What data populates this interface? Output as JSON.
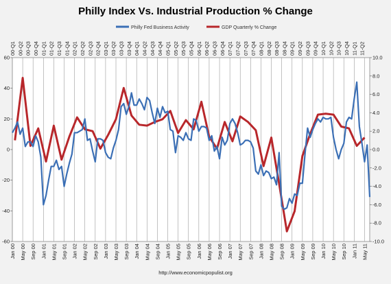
{
  "chart_data": {
    "type": "line",
    "title": "Philly Index Vs.  Industrial Production % Change",
    "footer": "http://www.economicpopulist.org",
    "legend": {
      "position": "top",
      "entries": [
        "Philly Fed Business Activity",
        "GDP Quarterly % Change"
      ]
    },
    "colors": {
      "philly": "#3b6fb5",
      "gdp": "#b8272b"
    },
    "left_axis": {
      "ylim": [
        -60,
        60
      ],
      "ticks": [
        "60",
        "40",
        "20",
        "0",
        "-20",
        "-40",
        "-60"
      ]
    },
    "right_axis": {
      "ylim": [
        -10,
        10
      ],
      "ticks": [
        "10.0",
        "8.0",
        "6.0",
        "4.0",
        "2.0",
        "0.0",
        "-2.0",
        "-4.0",
        "-6.0",
        "-8.0",
        "-10.0"
      ]
    },
    "x_month_range": [
      "Jan 00",
      "Jul 11"
    ],
    "bottom_labels": [
      "Jan 00",
      "May 00",
      "Sep 00",
      "Jan 01",
      "May 01",
      "Sep 01",
      "Jan 02",
      "May 02",
      "Sep 02",
      "Jan 03",
      "May 03",
      "Sep 03",
      "Jan 04",
      "May 04",
      "Sep 04",
      "Jan 05",
      "May 05",
      "Sep 05",
      "Jan 06",
      "May 06",
      "Sep 06",
      "Jan 07",
      "May 07",
      "Sep 07",
      "Jan 08",
      "May 08",
      "Sep 08",
      "Jan 09",
      "May 09",
      "Sep 09",
      "Jan 10",
      "May 10",
      "Sep 10",
      "Jan 11",
      "May 11"
    ],
    "top_labels": [
      "00-Q1",
      "00-Q2",
      "00-Q3",
      "00-Q4",
      "01-Q1",
      "01-Q2",
      "01-Q3",
      "01-Q4",
      "02-Q1",
      "02-Q2",
      "02-Q3",
      "02-Q4",
      "03-Q1",
      "03-Q2",
      "03-Q3",
      "03-Q4",
      "04-Q1",
      "04-Q2",
      "04-Q3",
      "04-Q4",
      "05-Q1",
      "05-Q2",
      "05-Q3",
      "05-Q4",
      "06-Q1",
      "06-Q2",
      "06-Q3",
      "06-Q4",
      "07-Q1",
      "07-Q2",
      "07-Q3",
      "07-Q4",
      "08-Q1",
      "08-Q2",
      "08-Q3",
      "08-Q4",
      "09-Q1",
      "09-Q2",
      "09-Q3",
      "09-Q4",
      "10-Q1",
      "10-Q2",
      "10-Q3",
      "10-Q4",
      "11-Q1",
      "11-Q2"
    ],
    "series": [
      {
        "name": "Philly Fed Business Activity",
        "axis": "left",
        "values": [
          11,
          14,
          18,
          10,
          14,
          2,
          5,
          5,
          2,
          9,
          5,
          -5,
          -36,
          -30,
          -20,
          -11,
          -11,
          -7,
          -13,
          -11,
          -24,
          -16,
          -9,
          -3,
          11,
          11,
          12,
          13,
          20,
          6,
          7,
          -1,
          -8,
          7,
          7,
          6,
          -2,
          -5,
          -6,
          1,
          6,
          13,
          28,
          30,
          23,
          28,
          37,
          29,
          29,
          33,
          30,
          26,
          34,
          32,
          24,
          17,
          27,
          21,
          28,
          24,
          25,
          13,
          12,
          -2,
          9,
          8,
          6,
          11,
          7,
          6,
          20,
          19,
          12,
          15,
          15,
          14,
          6,
          9,
          -1,
          2,
          -6,
          8,
          3,
          6,
          17,
          20,
          17,
          11,
          3,
          4,
          6,
          6,
          5,
          1,
          -14,
          -16,
          -10,
          -17,
          -14,
          -15,
          -19,
          -18,
          -23,
          -2,
          -37,
          -39,
          -38,
          -32,
          -35,
          -29,
          -30,
          -22,
          -22,
          -3,
          14,
          8,
          13,
          17,
          20,
          18,
          21,
          20,
          20,
          21,
          8,
          0,
          -6,
          0,
          4,
          18,
          21,
          20,
          33,
          44,
          15,
          4,
          -8,
          3,
          -31
        ]
      },
      {
        "name": "GDP Quarterly % Change",
        "axis": "right",
        "values": [
          1.0,
          7.8,
          0.4,
          2.3,
          -1.3,
          2.6,
          -1.1,
          1.4,
          3.5,
          2.2,
          2.0,
          0.1,
          1.6,
          3.3,
          6.7,
          3.7,
          2.7,
          2.6,
          3.0,
          3.3,
          4.2,
          1.8,
          3.2,
          2.2,
          5.2,
          1.4,
          0.1,
          3.0,
          0.9,
          3.6,
          3.0,
          2.1,
          -1.8,
          1.3,
          -3.7,
          -8.9,
          -6.7,
          -0.7,
          1.7,
          3.8,
          3.9,
          3.8,
          2.5,
          2.3,
          0.4,
          1.3
        ]
      }
    ]
  }
}
